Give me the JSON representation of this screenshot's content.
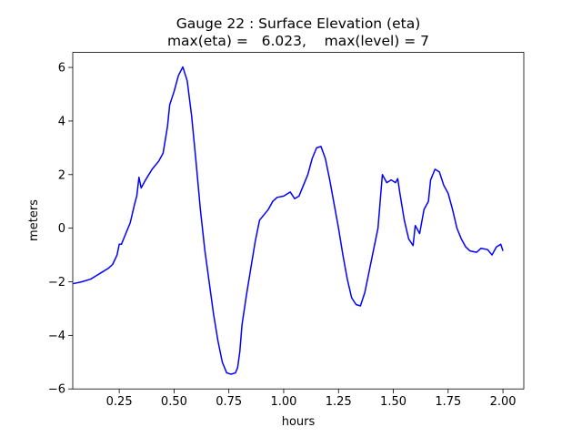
{
  "chart_data": {
    "type": "line",
    "title": "Gauge 22 : Surface Elevation (eta)",
    "subtitle": "max(eta) =   6.023,    max(level) = 7",
    "x_label": "hours",
    "y_label": "meters",
    "x": [
      0.04,
      0.08,
      0.12,
      0.15,
      0.17,
      0.2,
      0.22,
      0.24,
      0.25,
      0.26,
      0.28,
      0.3,
      0.32,
      0.33,
      0.34,
      0.35,
      0.37,
      0.4,
      0.43,
      0.45,
      0.47,
      0.48,
      0.5,
      0.52,
      0.54,
      0.56,
      0.58,
      0.6,
      0.62,
      0.64,
      0.66,
      0.68,
      0.7,
      0.72,
      0.74,
      0.76,
      0.78,
      0.79,
      0.8,
      0.81,
      0.83,
      0.85,
      0.87,
      0.89,
      0.91,
      0.93,
      0.95,
      0.97,
      1.0,
      1.03,
      1.05,
      1.07,
      1.09,
      1.11,
      1.13,
      1.15,
      1.17,
      1.19,
      1.21,
      1.23,
      1.25,
      1.27,
      1.29,
      1.31,
      1.33,
      1.35,
      1.37,
      1.39,
      1.41,
      1.43,
      1.44,
      1.45,
      1.47,
      1.49,
      1.51,
      1.52,
      1.53,
      1.55,
      1.57,
      1.59,
      1.6,
      1.62,
      1.64,
      1.66,
      1.67,
      1.69,
      1.71,
      1.73,
      1.75,
      1.77,
      1.79,
      1.81,
      1.83,
      1.85,
      1.88,
      1.9,
      1.93,
      1.95,
      1.97,
      1.99,
      2.0
    ],
    "series": [
      {
        "color": "#0000ff",
        "values": [
          -2.07,
          -2.0,
          -1.9,
          -1.75,
          -1.65,
          -1.5,
          -1.35,
          -1.0,
          -0.6,
          -0.6,
          -0.2,
          0.2,
          0.9,
          1.2,
          1.9,
          1.5,
          1.8,
          2.2,
          2.5,
          2.8,
          3.8,
          4.6,
          5.1,
          5.7,
          6.02,
          5.5,
          4.2,
          2.5,
          0.7,
          -0.8,
          -2.0,
          -3.2,
          -4.2,
          -5.0,
          -5.4,
          -5.45,
          -5.4,
          -5.2,
          -4.6,
          -3.6,
          -2.5,
          -1.5,
          -0.5,
          0.3,
          0.5,
          0.7,
          1.0,
          1.15,
          1.2,
          1.35,
          1.1,
          1.2,
          1.6,
          2.0,
          2.6,
          3.0,
          3.05,
          2.6,
          1.8,
          0.9,
          0.0,
          -1.0,
          -1.9,
          -2.6,
          -2.85,
          -2.9,
          -2.4,
          -1.6,
          -0.8,
          0.0,
          1.0,
          2.0,
          1.7,
          1.8,
          1.7,
          1.85,
          1.3,
          0.3,
          -0.4,
          -0.65,
          0.1,
          -0.2,
          0.7,
          1.0,
          1.8,
          2.2,
          2.1,
          1.6,
          1.3,
          0.7,
          0.0,
          -0.4,
          -0.7,
          -0.85,
          -0.9,
          -0.75,
          -0.8,
          -1.0,
          -0.7,
          -0.6,
          -0.85
        ]
      }
    ],
    "xlim": [
      0.038,
      2.095
    ],
    "ylim": [
      -6.0,
      6.56
    ],
    "xticks": [
      0.25,
      {
        "value": 0.5,
        "label": "0.50"
      },
      0.75,
      {
        "value": 1.0,
        "label": "1.00"
      },
      1.25,
      {
        "value": 1.5,
        "label": "1.50"
      },
      1.75,
      {
        "value": 2.0,
        "label": "2.00"
      }
    ],
    "yticks": [
      {
        "value": -6,
        "label": "−6"
      },
      {
        "value": -4,
        "label": "−4"
      },
      {
        "value": -2,
        "label": "−2"
      },
      0,
      2,
      4,
      6
    ],
    "grid": false
  }
}
